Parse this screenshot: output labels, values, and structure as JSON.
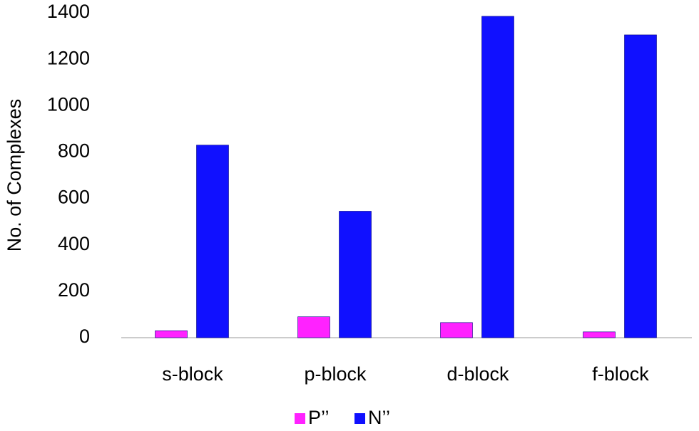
{
  "chart_data": {
    "type": "bar",
    "ylabel": "No. of Complexes",
    "categories": [
      "s-block",
      "p-block",
      "d-block",
      "f-block"
    ],
    "series": [
      {
        "name": "P’’",
        "color": "#ff22ff",
        "values": [
          30,
          90,
          65,
          25
        ]
      },
      {
        "name": "N’’",
        "color": "#1010ff",
        "values": [
          830,
          545,
          1385,
          1305
        ]
      }
    ],
    "ylim": [
      0,
      1400
    ],
    "yticks": [
      0,
      200,
      400,
      600,
      800,
      1000,
      1200,
      1400
    ],
    "grid": false,
    "legend": "bottom"
  }
}
